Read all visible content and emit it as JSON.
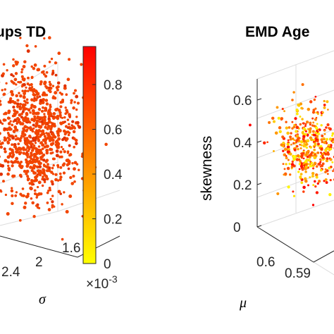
{
  "chart_data": [
    {
      "type": "scatter",
      "title": "ups TD",
      "xlabel": "σ",
      "x_ticks": [
        "2.4",
        "2",
        "1.6"
      ],
      "points": {
        "count": 900,
        "color": "#f24500"
      }
    },
    {
      "type": "colorbar",
      "ticks": [
        "0",
        "0.2",
        "0.4",
        "0.6",
        "0.8"
      ],
      "tick_values": [
        0,
        0.2,
        0.4,
        0.6,
        0.8
      ],
      "range": [
        0,
        0.97
      ],
      "exponent": "×10",
      "exponent_power": "-3",
      "colormap": [
        "#ffff00",
        "#ff0000"
      ]
    },
    {
      "type": "scatter",
      "title": "EMD Age",
      "ylabel": "skewness",
      "xlabel": "μ",
      "y_ticks": [
        "0.6",
        "0.4",
        "0.2",
        "0"
      ],
      "y_tick_values": [
        0.6,
        0.4,
        0.2,
        0
      ],
      "x_ticks": [
        "0.6",
        "0.59"
      ],
      "zlim": [
        0,
        0.7
      ],
      "points": {
        "count": 450,
        "colormap": [
          "#ffff00",
          "#ff0000"
        ]
      }
    }
  ]
}
